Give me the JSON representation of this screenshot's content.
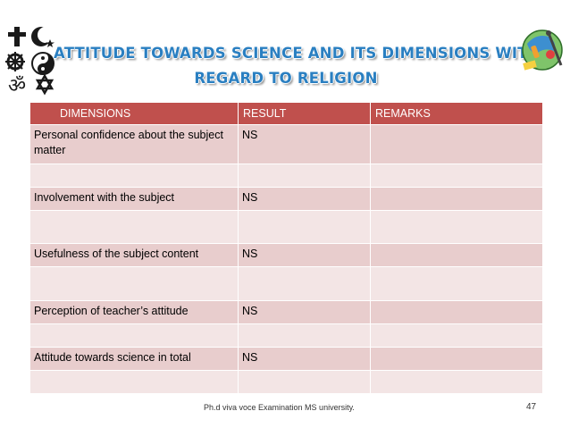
{
  "slide": {
    "title_line1": "ATTITUDE TOWARDS SCIENCE AND ITS DIMENSIONS WITH",
    "title_line2": "REGARD TO  RELIGION",
    "footer": "Ph.d viva voce Examination  MS university.",
    "page_number": "47"
  },
  "table": {
    "headers": [
      "DIMENSIONS",
      "RESULT",
      "REMARKS"
    ],
    "rows": [
      {
        "dimension": "Personal confidence about the subject matter",
        "result": "NS",
        "remarks": ""
      },
      {
        "dimension": "",
        "result": "",
        "remarks": ""
      },
      {
        "dimension": "Involvement with the subject",
        "result": "NS",
        "remarks": ""
      },
      {
        "dimension": "",
        "result": "",
        "remarks": ""
      },
      {
        "dimension": "Usefulness of the subject content",
        "result": "NS",
        "remarks": ""
      },
      {
        "dimension": "",
        "result": "",
        "remarks": ""
      },
      {
        "dimension": "Perception of teacher’s attitude",
        "result": "NS",
        "remarks": ""
      },
      {
        "dimension": "",
        "result": "",
        "remarks": ""
      },
      {
        "dimension": "Attitude towards science in total",
        "result": "NS",
        "remarks": ""
      },
      {
        "dimension": "",
        "result": "",
        "remarks": ""
      }
    ]
  },
  "icons": {
    "left": "religion-symbols-icon",
    "right": "science-globe-icon"
  },
  "colors": {
    "title": "#2a7fc1",
    "header_bg": "#c0504d",
    "row_bg": "#e8cdcd",
    "row_alt_bg": "#f3e5e5"
  }
}
